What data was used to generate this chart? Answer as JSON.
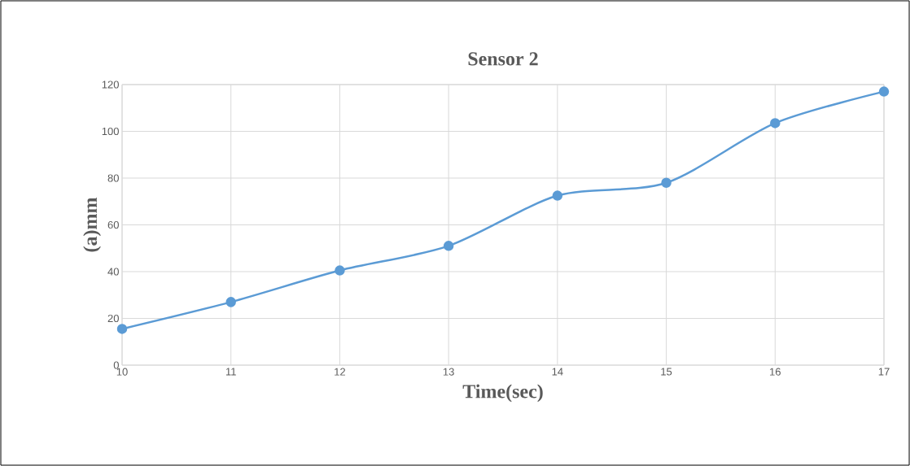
{
  "chart_data": {
    "type": "line",
    "title": "Sensor 2",
    "xlabel": "Time(sec)",
    "ylabel": "(a)mm",
    "x": [
      10,
      11,
      12,
      13,
      14,
      15,
      16,
      17
    ],
    "series": [
      {
        "color": "#5b9bd5",
        "values": [
          15.5,
          27,
          40.5,
          51,
          72.5,
          78,
          103.5,
          117
        ]
      }
    ],
    "xlim": [
      10,
      17
    ],
    "ylim": [
      0,
      120
    ],
    "xticks": [
      10,
      11,
      12,
      13,
      14,
      15,
      16,
      17
    ],
    "yticks": [
      0,
      20,
      40,
      60,
      80,
      100,
      120
    ],
    "grid": true,
    "marker": "circle",
    "line_style": "solid"
  }
}
